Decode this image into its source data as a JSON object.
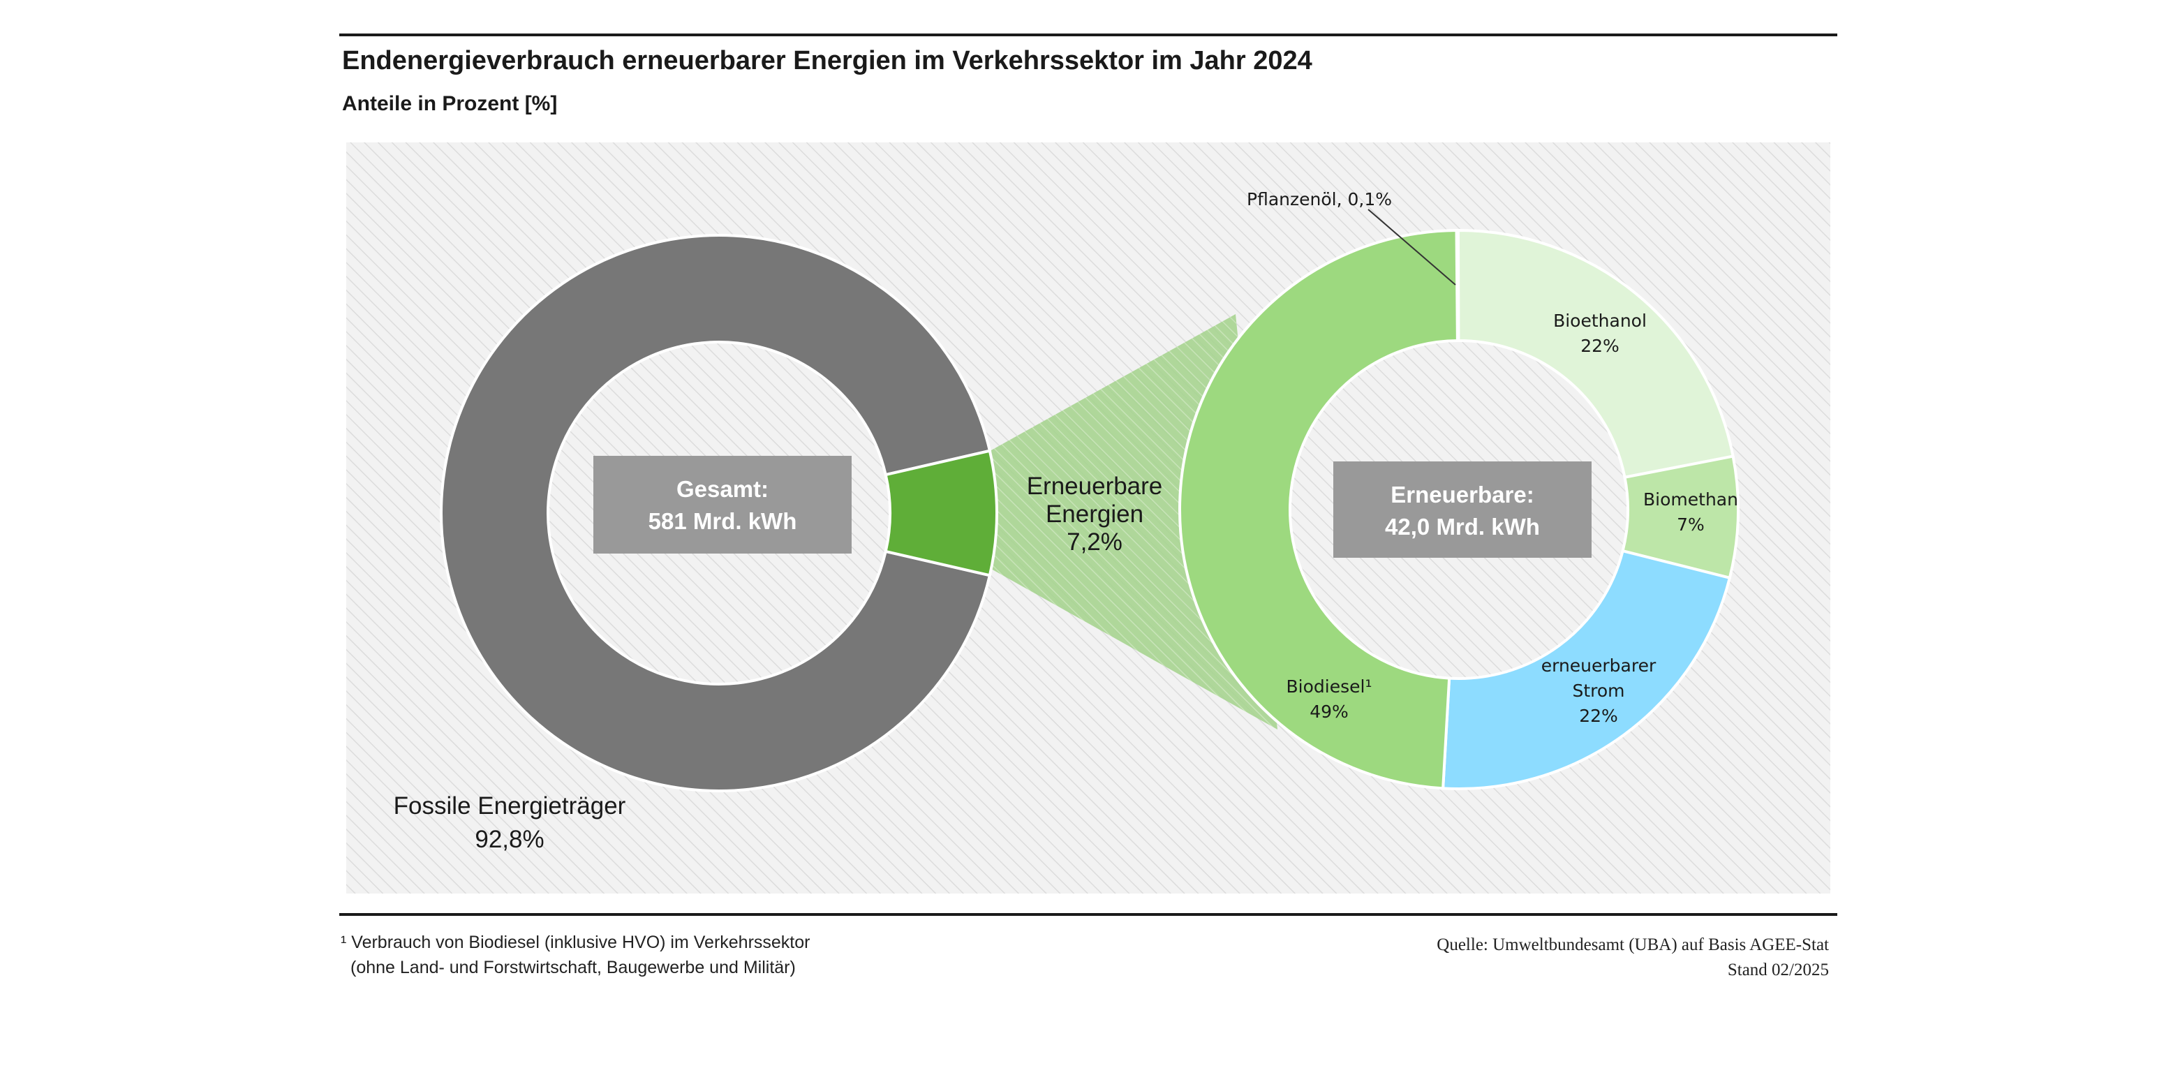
{
  "header": {
    "title": "Endenergieverbrauch  erneuerbarer Energien im Verkehrssektor im Jahr 2024",
    "subtitle": "Anteile in Prozent [%]"
  },
  "colors": {
    "fossil": "#777777",
    "renewable": "#5fae38",
    "biodiesel": "#9dd97f",
    "pflanzenoel": "#9dd97f",
    "bioethanol": "#e0f4d8",
    "biomethan": "#bde6a8",
    "strom": "#8ddcff",
    "connector": "#9ccf84",
    "center_box": "#999999",
    "hatch_bg": "#f2f2f2",
    "hatch_line": "#dcdcdc"
  },
  "chart_data": [
    {
      "type": "pie",
      "variant": "donut",
      "center_label": [
        "Gesamt:",
        "581 Mrd. kWh"
      ],
      "slices": [
        {
          "name": "Fossile Energieträger",
          "value": 92.8,
          "value_label": "92,8%",
          "label_lines": [
            "Fossile Energieträger",
            "92,8%"
          ]
        },
        {
          "name": "Erneuerbare Energien",
          "value": 7.2,
          "value_label": "7,2%",
          "label_lines": [
            "Erneuerbare",
            "Energien",
            "7,2%"
          ]
        }
      ]
    },
    {
      "type": "pie",
      "variant": "donut",
      "center_label": [
        "Erneuerbare:",
        "42,0 Mrd. kWh"
      ],
      "slices": [
        {
          "name": "Pflanzenöl",
          "value": 0.1,
          "label_lines": [
            "Pflanzenöl, 0,1%"
          ]
        },
        {
          "name": "Bioethanol",
          "value": 22,
          "label_lines": [
            "Bioethanol",
            "22%"
          ]
        },
        {
          "name": "Biomethan",
          "value": 7,
          "label_lines": [
            "Biomethan",
            "7%"
          ]
        },
        {
          "name": "erneuerbarer Strom",
          "value": 22,
          "label_lines": [
            "erneuerbarer",
            "Strom",
            "22%"
          ]
        },
        {
          "name": "Biodiesel",
          "value": 49,
          "label_lines": [
            "Biodiesel¹",
            "49%"
          ]
        }
      ]
    }
  ],
  "footnote": {
    "lines": [
      "¹ Verbrauch von Biodiesel (inklusive HVO) im Verkehrssektor",
      "  (ohne Land- und Forstwirtschaft, Baugewerbe und Militär)"
    ]
  },
  "source": {
    "lines": [
      "Quelle: Umweltbundesamt (UBA) auf Basis AGEE-Stat",
      "Stand 02/2025"
    ]
  }
}
